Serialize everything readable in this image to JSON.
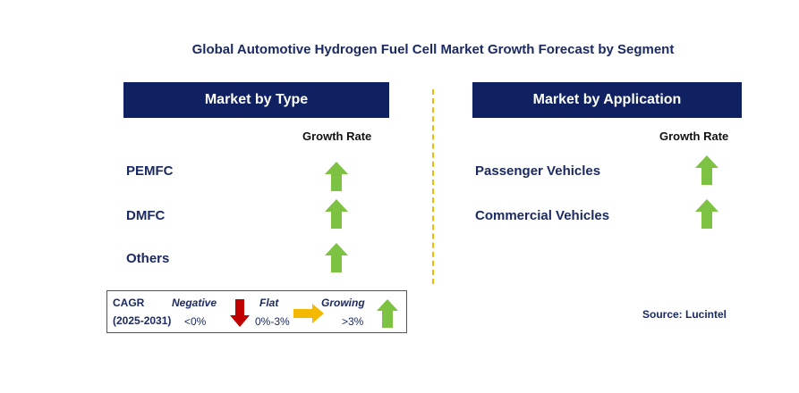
{
  "title": "Global Automotive Hydrogen Fuel Cell Market Growth Forecast by Segment",
  "colors": {
    "navy": "#0f2161",
    "up_green": "#7dc242",
    "down_red": "#c00000",
    "flat_yellow": "#f5b800"
  },
  "left_panel": {
    "header": "Market by Type",
    "growth_rate_label": "Growth Rate",
    "items": [
      {
        "label": "PEMFC",
        "trend": "up-arrow-icon"
      },
      {
        "label": "DMFC",
        "trend": "up-arrow-icon"
      },
      {
        "label": "Others",
        "trend": "up-arrow-icon"
      }
    ]
  },
  "right_panel": {
    "header": "Market by Application",
    "growth_rate_label": "Growth Rate",
    "items": [
      {
        "label": "Passenger Vehicles",
        "trend": "up-arrow-icon"
      },
      {
        "label": "Commercial Vehicles",
        "trend": "up-arrow-icon"
      }
    ]
  },
  "legend": {
    "cagr": "CAGR",
    "period": "(2025-2031)",
    "negative": "Negative",
    "negative_range": "<0%",
    "flat": "Flat",
    "flat_range": "0%-3%",
    "growing": "Growing",
    "growing_range": ">3%"
  },
  "source": "Source: Lucintel"
}
